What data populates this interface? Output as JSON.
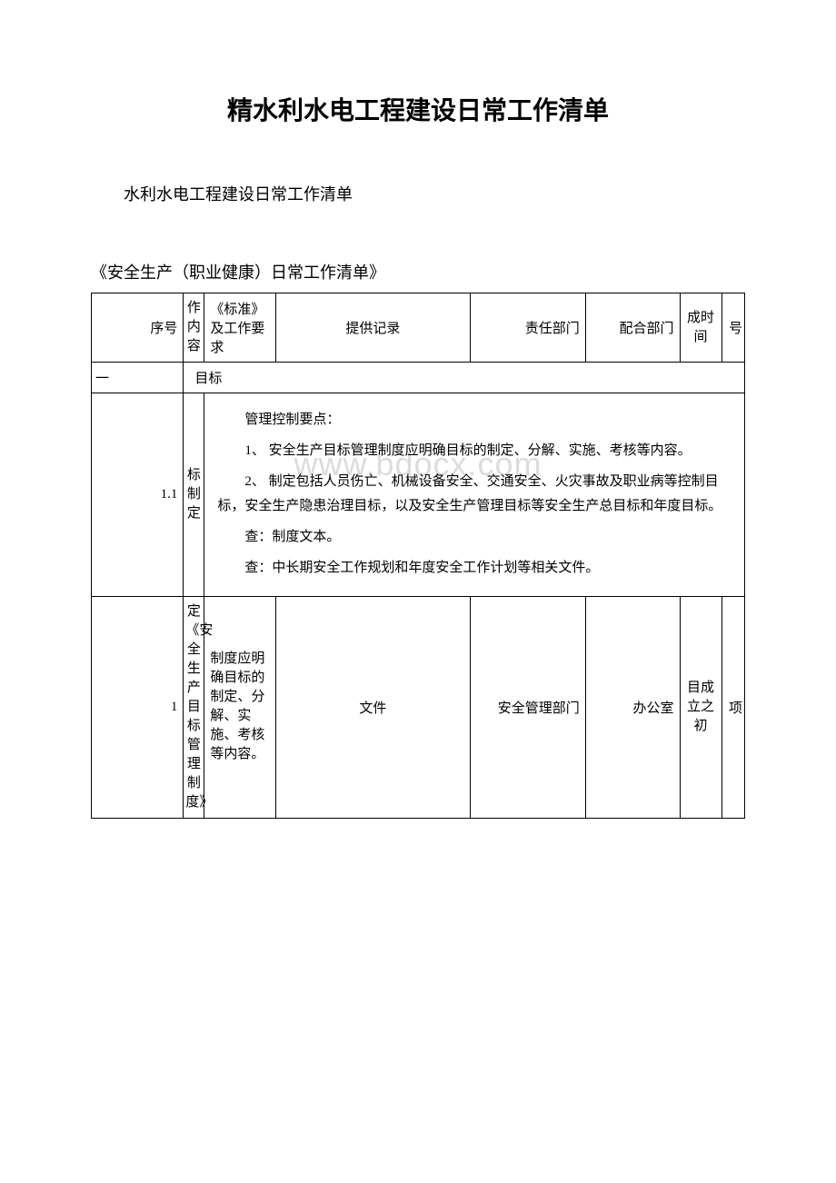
{
  "watermark": "www.bdocx.com",
  "main_title": "精水利水电工程建设日常工作清单",
  "subtitle": "水利水电工程建设日常工作清单",
  "section_title": "《安全生产（职业健康）日常工作清单》",
  "headers": {
    "seq": "序号",
    "work": "作内容",
    "standard": "《标准》及工作要求",
    "record": "提供记录",
    "dept": "责任部门",
    "coop": "配合部门",
    "time": "成时间",
    "extra": "号"
  },
  "section_row": {
    "num": "一",
    "label": "目标"
  },
  "row_1_1": {
    "seq": "1.1",
    "work": "标制定",
    "content_title": "管理控制要点：",
    "content_p1": "1、 安全生产目标管理制度应明确目标的制定、分解、实施、考核等内容。",
    "content_p2": "2、 制定包括人员伤亡、机械设备安全、交通安全、火灾事故及职业病等控制目标，安全生产隐患治理目标，以及安全生产管理目标等安全生产总目标和年度目标。",
    "content_p3": "查：制度文本。",
    "content_p4": "查：中长期安全工作规划和年度安全工作计划等相关文件。"
  },
  "row_1": {
    "seq": "1",
    "work": "定《安全生产目标管理制度》",
    "standard": "制度应明确目标的制定、分解、实施、考核等内容。",
    "record": "文件",
    "dept": "安全管理部门",
    "coop": "办公室",
    "time": "目成立之初",
    "extra": "项"
  },
  "colors": {
    "background": "#ffffff",
    "text": "#000000",
    "border": "#000000",
    "watermark": "#dcdcdc"
  }
}
